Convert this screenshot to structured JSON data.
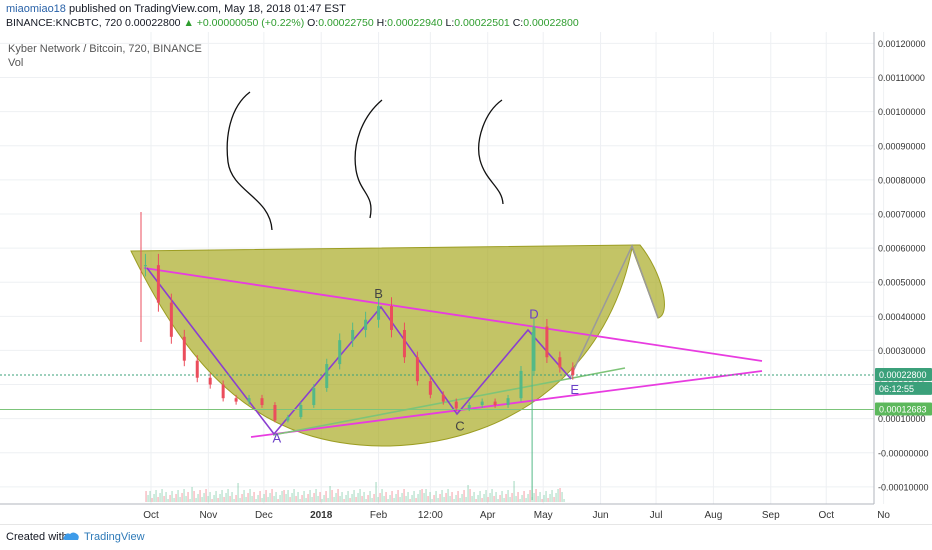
{
  "header": {
    "author": "miaomiao18",
    "published_text": "published on TradingView.com, May 18, 2018 01:47 EST",
    "symbol": "BINANCE:KNCBTC, 720",
    "last": "0.00022800",
    "change": "+0.00000050 (+0.22%)",
    "open_label": "O:",
    "open": "0.00022750",
    "high_label": "H:",
    "high": "0.00022940",
    "low_label": "L:",
    "low": "0.00022501",
    "close_label": "C:",
    "close": "0.00022800"
  },
  "legend": {
    "title": "Kyber Network / Bitcoin, 720, BINANCE",
    "vol_label": "Vol"
  },
  "footer": {
    "created_with": "Created with",
    "brand": "TradingView"
  },
  "colors": {
    "cup_fill": "#a6a81e",
    "pink_line": "#e83ce0",
    "zigzag": "#8a3fd0",
    "green_line": "#7ec478",
    "candle_up": "#53b987",
    "candle_down": "#eb4d5c",
    "gray_path": "#9a9a9a"
  },
  "chart_data": {
    "type": "candlestick",
    "title": "Kyber Network / Bitcoin, 720, BINANCE",
    "x_ticks": [
      "Oct",
      "Nov",
      "Dec",
      "2018",
      "Feb",
      "12:00",
      "Apr",
      "May",
      "Jun",
      "Jul",
      "Aug",
      "Sep",
      "Oct",
      "No"
    ],
    "y_ticks": [
      "0.00120000",
      "0.00110000",
      "0.00100000",
      "0.00090000",
      "0.00080000",
      "0.00070000",
      "0.00060000",
      "0.00050000",
      "0.00040000",
      "0.00030000",
      "0.00020000",
      "0.00010000",
      "-0.00000000",
      "-0.00010000"
    ],
    "ylim": [
      -0.000115,
      0.00121
    ],
    "price_tags": [
      {
        "value": 0.000228,
        "label": "0.00022800"
      },
      {
        "value": 0.000205,
        "label": "06:12:55"
      },
      {
        "value": 0.00012683,
        "label": "0.00012683"
      }
    ],
    "close_series": [
      [
        "2017-09-28",
        0.00055
      ],
      [
        "2017-10-05",
        0.00044
      ],
      [
        "2017-10-12",
        0.00034
      ],
      [
        "2017-10-19",
        0.00027
      ],
      [
        "2017-10-26",
        0.00022
      ],
      [
        "2017-11-02",
        0.0002
      ],
      [
        "2017-11-09",
        0.00016
      ],
      [
        "2017-11-16",
        0.00015
      ],
      [
        "2017-11-23",
        0.00016
      ],
      [
        "2017-11-30",
        0.00014
      ],
      [
        "2017-12-07",
        9.5e-05
      ],
      [
        "2017-12-14",
        0.000105
      ],
      [
        "2017-12-21",
        0.00014
      ],
      [
        "2017-12-28",
        0.00019
      ],
      [
        "2018-01-04",
        0.00026
      ],
      [
        "2018-01-11",
        0.00033
      ],
      [
        "2018-01-18",
        0.00036
      ],
      [
        "2018-01-25",
        0.00039
      ],
      [
        "2018-02-01",
        0.00043
      ],
      [
        "2018-02-08",
        0.00036
      ],
      [
        "2018-02-15",
        0.00028
      ],
      [
        "2018-02-22",
        0.00021
      ],
      [
        "2018-03-01",
        0.00017
      ],
      [
        "2018-03-08",
        0.00015
      ],
      [
        "2018-03-15",
        0.00013
      ],
      [
        "2018-03-22",
        0.00014
      ],
      [
        "2018-03-29",
        0.00015
      ],
      [
        "2018-04-05",
        0.00014
      ],
      [
        "2018-04-12",
        0.00016
      ],
      [
        "2018-04-19",
        0.00024
      ],
      [
        "2018-04-26",
        0.00037
      ],
      [
        "2018-05-03",
        0.00028
      ],
      [
        "2018-05-10",
        0.00025
      ],
      [
        "2018-05-17",
        0.000228
      ]
    ],
    "annotations": [
      {
        "label": "A",
        "date": "2017-12-08",
        "value": 9.5e-05
      },
      {
        "label": "B",
        "date": "2018-02-01",
        "value": 0.00043
      },
      {
        "label": "C",
        "date": "2018-03-17",
        "value": 0.00013
      },
      {
        "label": "D",
        "date": "2018-04-26",
        "value": 0.00037
      },
      {
        "label": "E",
        "date": "2018-05-18",
        "value": 0.000225
      }
    ]
  }
}
